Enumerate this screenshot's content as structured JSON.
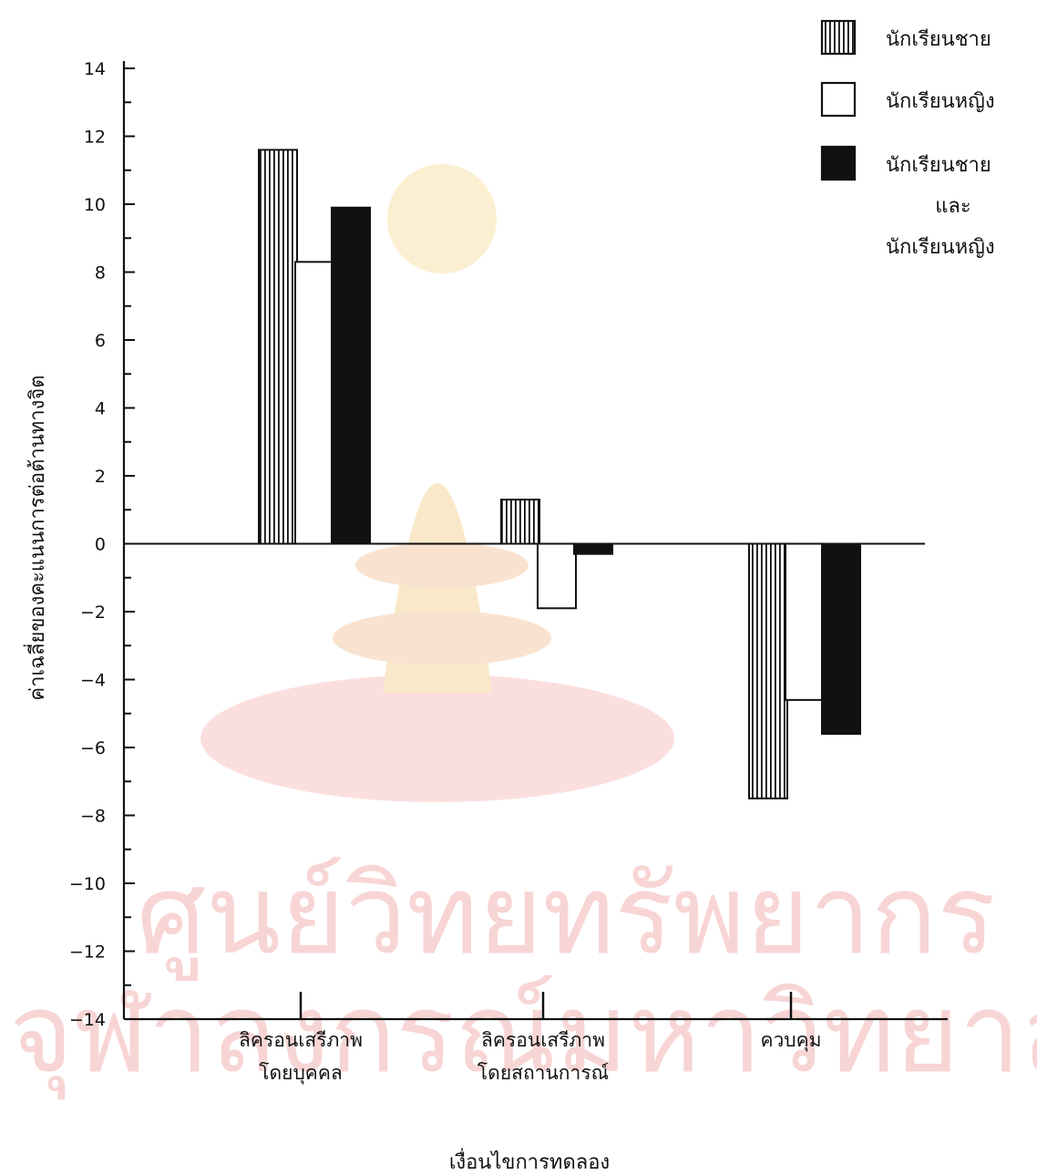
{
  "chart_data": {
    "type": "bar",
    "xlabel": "เงื่อนไขการทดลอง",
    "ylabel": "ค่าเฉลี่ยของคะแนนการต่อต้านทางจิต",
    "ylim": [
      -14,
      14
    ],
    "yticks": [
      14,
      12,
      10,
      8,
      6,
      4,
      2,
      0,
      -2,
      -4,
      -6,
      -8,
      -10,
      -12,
      -14
    ],
    "categories": [
      [
        "ลิครอนเสรีภาพ",
        "โดยบุคคล"
      ],
      [
        "ลิครอนเสรีภาพ",
        "โดยสถานการณ์"
      ],
      [
        "ควบคุม"
      ]
    ],
    "series": [
      {
        "name": "นักเรียนชาย",
        "pattern": "vertical-stripes",
        "values": [
          11.6,
          1.3,
          -7.5
        ]
      },
      {
        "name": "นักเรียนหญิง",
        "pattern": "white",
        "values": [
          8.3,
          -1.9,
          -4.6
        ]
      },
      {
        "name": "นักเรียนชาย และ นักเรียนหญิง",
        "pattern": "black",
        "values": [
          9.9,
          -0.3,
          -5.6
        ]
      }
    ],
    "legend": {
      "position": "top-right",
      "entries": [
        [
          "นักเรียนชาย"
        ],
        [
          "นักเรียนหญิง"
        ],
        [
          "นักเรียนชาย",
          "และ",
          "นักเรียนหญิง"
        ]
      ]
    },
    "grid": false,
    "colors": {
      "ink": "#111111",
      "watermark": "#f3b3b3"
    }
  },
  "watermark": {
    "line1": "ศูนย์วิทยทรัพยากร",
    "line2": "จุฬาลงกรณ์มหาวิทยาลัย"
  }
}
